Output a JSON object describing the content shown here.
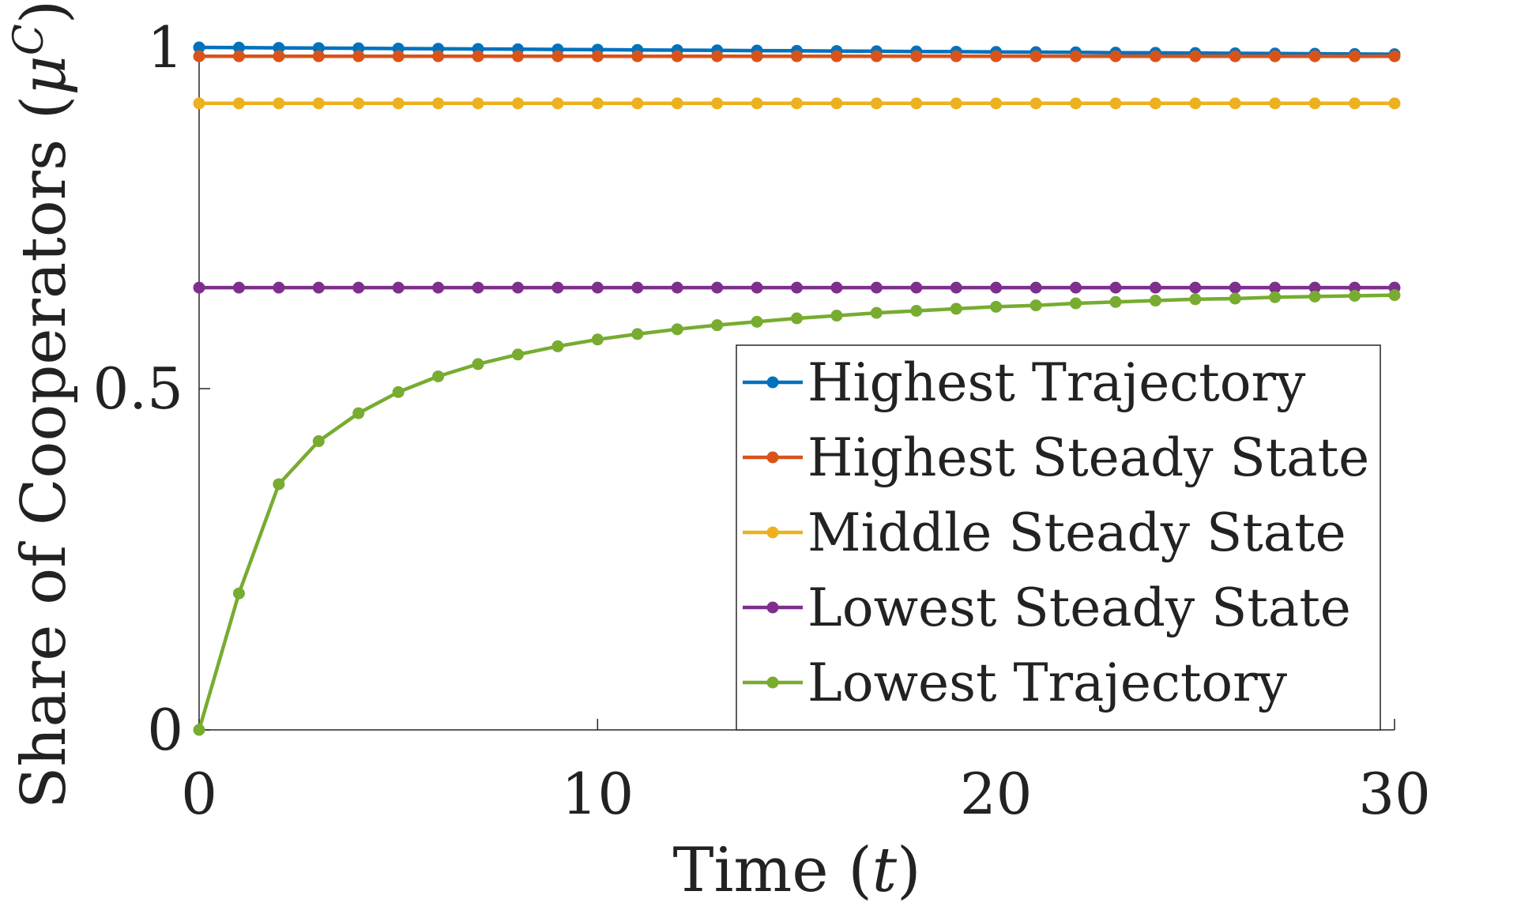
{
  "chart_data": {
    "type": "line",
    "title": "",
    "xlabel": "Time (t)",
    "ylabel": "Share of Cooperators (μ^C)",
    "xlabel_text": "Time (",
    "xlabel_var": "t",
    "xlabel_close": ")",
    "ylabel_text": "Share of Cooperators (",
    "ylabel_var": "μ",
    "ylabel_sup": "C",
    "ylabel_close": ")",
    "xlim": [
      0,
      30
    ],
    "ylim": [
      0,
      1
    ],
    "xticks": [
      0,
      10,
      20,
      30
    ],
    "xtick_labels": [
      "0",
      "10",
      "20",
      "30"
    ],
    "yticks": [
      0,
      0.5,
      1
    ],
    "ytick_labels": [
      "0",
      "0.5",
      "1"
    ],
    "grid": false,
    "legend_position": "lower-right",
    "x": [
      0,
      1,
      2,
      3,
      4,
      5,
      6,
      7,
      8,
      9,
      10,
      11,
      12,
      13,
      14,
      15,
      16,
      17,
      18,
      19,
      20,
      21,
      22,
      23,
      24,
      25,
      26,
      27,
      28,
      29,
      30
    ],
    "series": [
      {
        "name": "Highest Trajectory",
        "color": "#0072BD",
        "values": [
          1.0,
          0.9997,
          0.9993,
          0.999,
          0.9987,
          0.9983,
          0.998,
          0.9977,
          0.9973,
          0.997,
          0.9967,
          0.9963,
          0.996,
          0.9957,
          0.9953,
          0.995,
          0.9947,
          0.9943,
          0.994,
          0.9937,
          0.9933,
          0.993,
          0.9927,
          0.9923,
          0.992,
          0.9917,
          0.9913,
          0.991,
          0.9907,
          0.9903,
          0.99
        ]
      },
      {
        "name": "Highest Steady State",
        "color": "#D95319",
        "values": [
          0.987,
          0.987,
          0.987,
          0.987,
          0.987,
          0.987,
          0.987,
          0.987,
          0.987,
          0.987,
          0.987,
          0.987,
          0.987,
          0.987,
          0.987,
          0.987,
          0.987,
          0.987,
          0.987,
          0.987,
          0.987,
          0.987,
          0.987,
          0.987,
          0.987,
          0.987,
          0.987,
          0.987,
          0.987,
          0.987,
          0.987
        ]
      },
      {
        "name": "Middle Steady State",
        "color": "#EDB120",
        "values": [
          0.918,
          0.918,
          0.918,
          0.918,
          0.918,
          0.918,
          0.918,
          0.918,
          0.918,
          0.918,
          0.918,
          0.918,
          0.918,
          0.918,
          0.918,
          0.918,
          0.918,
          0.918,
          0.918,
          0.918,
          0.918,
          0.918,
          0.918,
          0.918,
          0.918,
          0.918,
          0.918,
          0.918,
          0.918,
          0.918,
          0.918
        ]
      },
      {
        "name": "Lowest Steady State",
        "color": "#7E2F8E",
        "values": [
          0.648,
          0.648,
          0.648,
          0.648,
          0.648,
          0.648,
          0.648,
          0.648,
          0.648,
          0.648,
          0.648,
          0.648,
          0.648,
          0.648,
          0.648,
          0.648,
          0.648,
          0.648,
          0.648,
          0.648,
          0.648,
          0.648,
          0.648,
          0.648,
          0.648,
          0.648,
          0.648,
          0.648,
          0.648,
          0.648,
          0.648
        ]
      },
      {
        "name": "Lowest Trajectory",
        "color": "#77AC30",
        "values": [
          0.0,
          0.2,
          0.36,
          0.423,
          0.464,
          0.495,
          0.518,
          0.536,
          0.55,
          0.562,
          0.572,
          0.58,
          0.587,
          0.593,
          0.598,
          0.603,
          0.607,
          0.611,
          0.614,
          0.617,
          0.62,
          0.622,
          0.625,
          0.627,
          0.629,
          0.631,
          0.632,
          0.634,
          0.635,
          0.636,
          0.637
        ]
      }
    ]
  }
}
